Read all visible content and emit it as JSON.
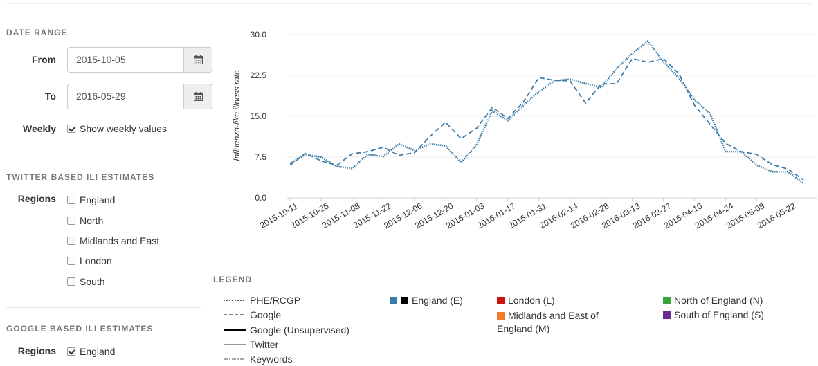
{
  "date_range": {
    "title": "DATE RANGE",
    "from_label": "From",
    "from_value": "2015-10-05",
    "to_label": "To",
    "to_value": "2016-05-29",
    "weekly_label": "Weekly",
    "weekly_checkbox_label": "Show weekly values",
    "weekly_checked": true
  },
  "twitter": {
    "title": "TWITTER BASED ILI ESTIMATES",
    "regions_label": "Regions",
    "regions": [
      {
        "label": "England",
        "checked": false
      },
      {
        "label": "North",
        "checked": false
      },
      {
        "label": "Midlands and East",
        "checked": false
      },
      {
        "label": "London",
        "checked": false
      },
      {
        "label": "South",
        "checked": false
      }
    ]
  },
  "google": {
    "title": "GOOGLE BASED ILI ESTIMATES",
    "regions_label": "Regions",
    "regions": [
      {
        "label": "England",
        "checked": true
      }
    ]
  },
  "legend": {
    "title": "LEGEND",
    "line_styles": [
      "PHE/RCGP",
      "Google",
      "Google (Unsupervised)",
      "Twitter",
      "Keywords"
    ],
    "regions": {
      "england": "England (E)",
      "london": "London (L)",
      "midlands": "Midlands and East of England (M)",
      "north": "North of England (N)",
      "south": "South of England (S)"
    },
    "colors": {
      "england_blue": "#3a7aa6",
      "england_black": "#000000",
      "london": "#cc1111",
      "midlands": "#f07d2b",
      "north": "#3aa63a",
      "south": "#6a2d91"
    }
  },
  "chart_data": {
    "type": "line",
    "ylabel": "Influenza-like illness rate",
    "xlabel": "",
    "ylim": [
      0,
      30
    ],
    "yticks": [
      "0.0",
      "7.5",
      "15.0",
      "22.5",
      "30.0"
    ],
    "x": [
      "2015-10-11",
      "2015-10-18",
      "2015-10-25",
      "2015-11-01",
      "2015-11-08",
      "2015-11-15",
      "2015-11-22",
      "2015-11-29",
      "2015-12-06",
      "2015-12-13",
      "2015-12-20",
      "2015-12-27",
      "2016-01-03",
      "2016-01-10",
      "2016-01-17",
      "2016-01-24",
      "2016-01-31",
      "2016-02-07",
      "2016-02-14",
      "2016-02-21",
      "2016-02-28",
      "2016-03-06",
      "2016-03-13",
      "2016-03-20",
      "2016-03-27",
      "2016-04-03",
      "2016-04-10",
      "2016-04-17",
      "2016-04-24",
      "2016-05-01",
      "2016-05-08",
      "2016-05-15",
      "2016-05-22",
      "2016-05-29"
    ],
    "xtick_labels": [
      "2015-10-11",
      "2015-10-25",
      "2015-11-08",
      "2015-11-22",
      "2015-12-06",
      "2015-12-20",
      "2016-01-03",
      "2016-01-17",
      "2016-01-31",
      "2016-02-14",
      "2016-02-28",
      "2016-03-13",
      "2016-03-27",
      "2016-04-10",
      "2016-04-24",
      "2016-05-08",
      "2016-05-22"
    ],
    "series": [
      {
        "name": "PHE/RCGP",
        "color": "#3a7aa6",
        "style": "dotted",
        "values": [
          6.3,
          8.0,
          7.5,
          5.8,
          5.4,
          8.0,
          7.6,
          9.9,
          8.7,
          9.9,
          9.6,
          6.5,
          9.8,
          16.0,
          14.2,
          17.0,
          19.5,
          21.5,
          21.8,
          21.0,
          20.3,
          23.8,
          26.5,
          28.8,
          25.0,
          22.0,
          18.0,
          15.5,
          8.5,
          8.5,
          6.0,
          4.8,
          4.8,
          2.7
        ]
      },
      {
        "name": "Google",
        "color": "#3a7aa6",
        "style": "dashed",
        "values": [
          6.0,
          8.2,
          6.8,
          6.0,
          8.1,
          8.5,
          9.3,
          7.8,
          8.3,
          11.3,
          13.9,
          10.9,
          12.8,
          16.6,
          14.6,
          17.6,
          22.1,
          21.6,
          21.5,
          17.4,
          20.9,
          21.0,
          25.6,
          24.9,
          25.6,
          22.8,
          17.0,
          13.5,
          10.0,
          8.5,
          8.0,
          6.1,
          5.3,
          3.3
        ]
      }
    ]
  }
}
